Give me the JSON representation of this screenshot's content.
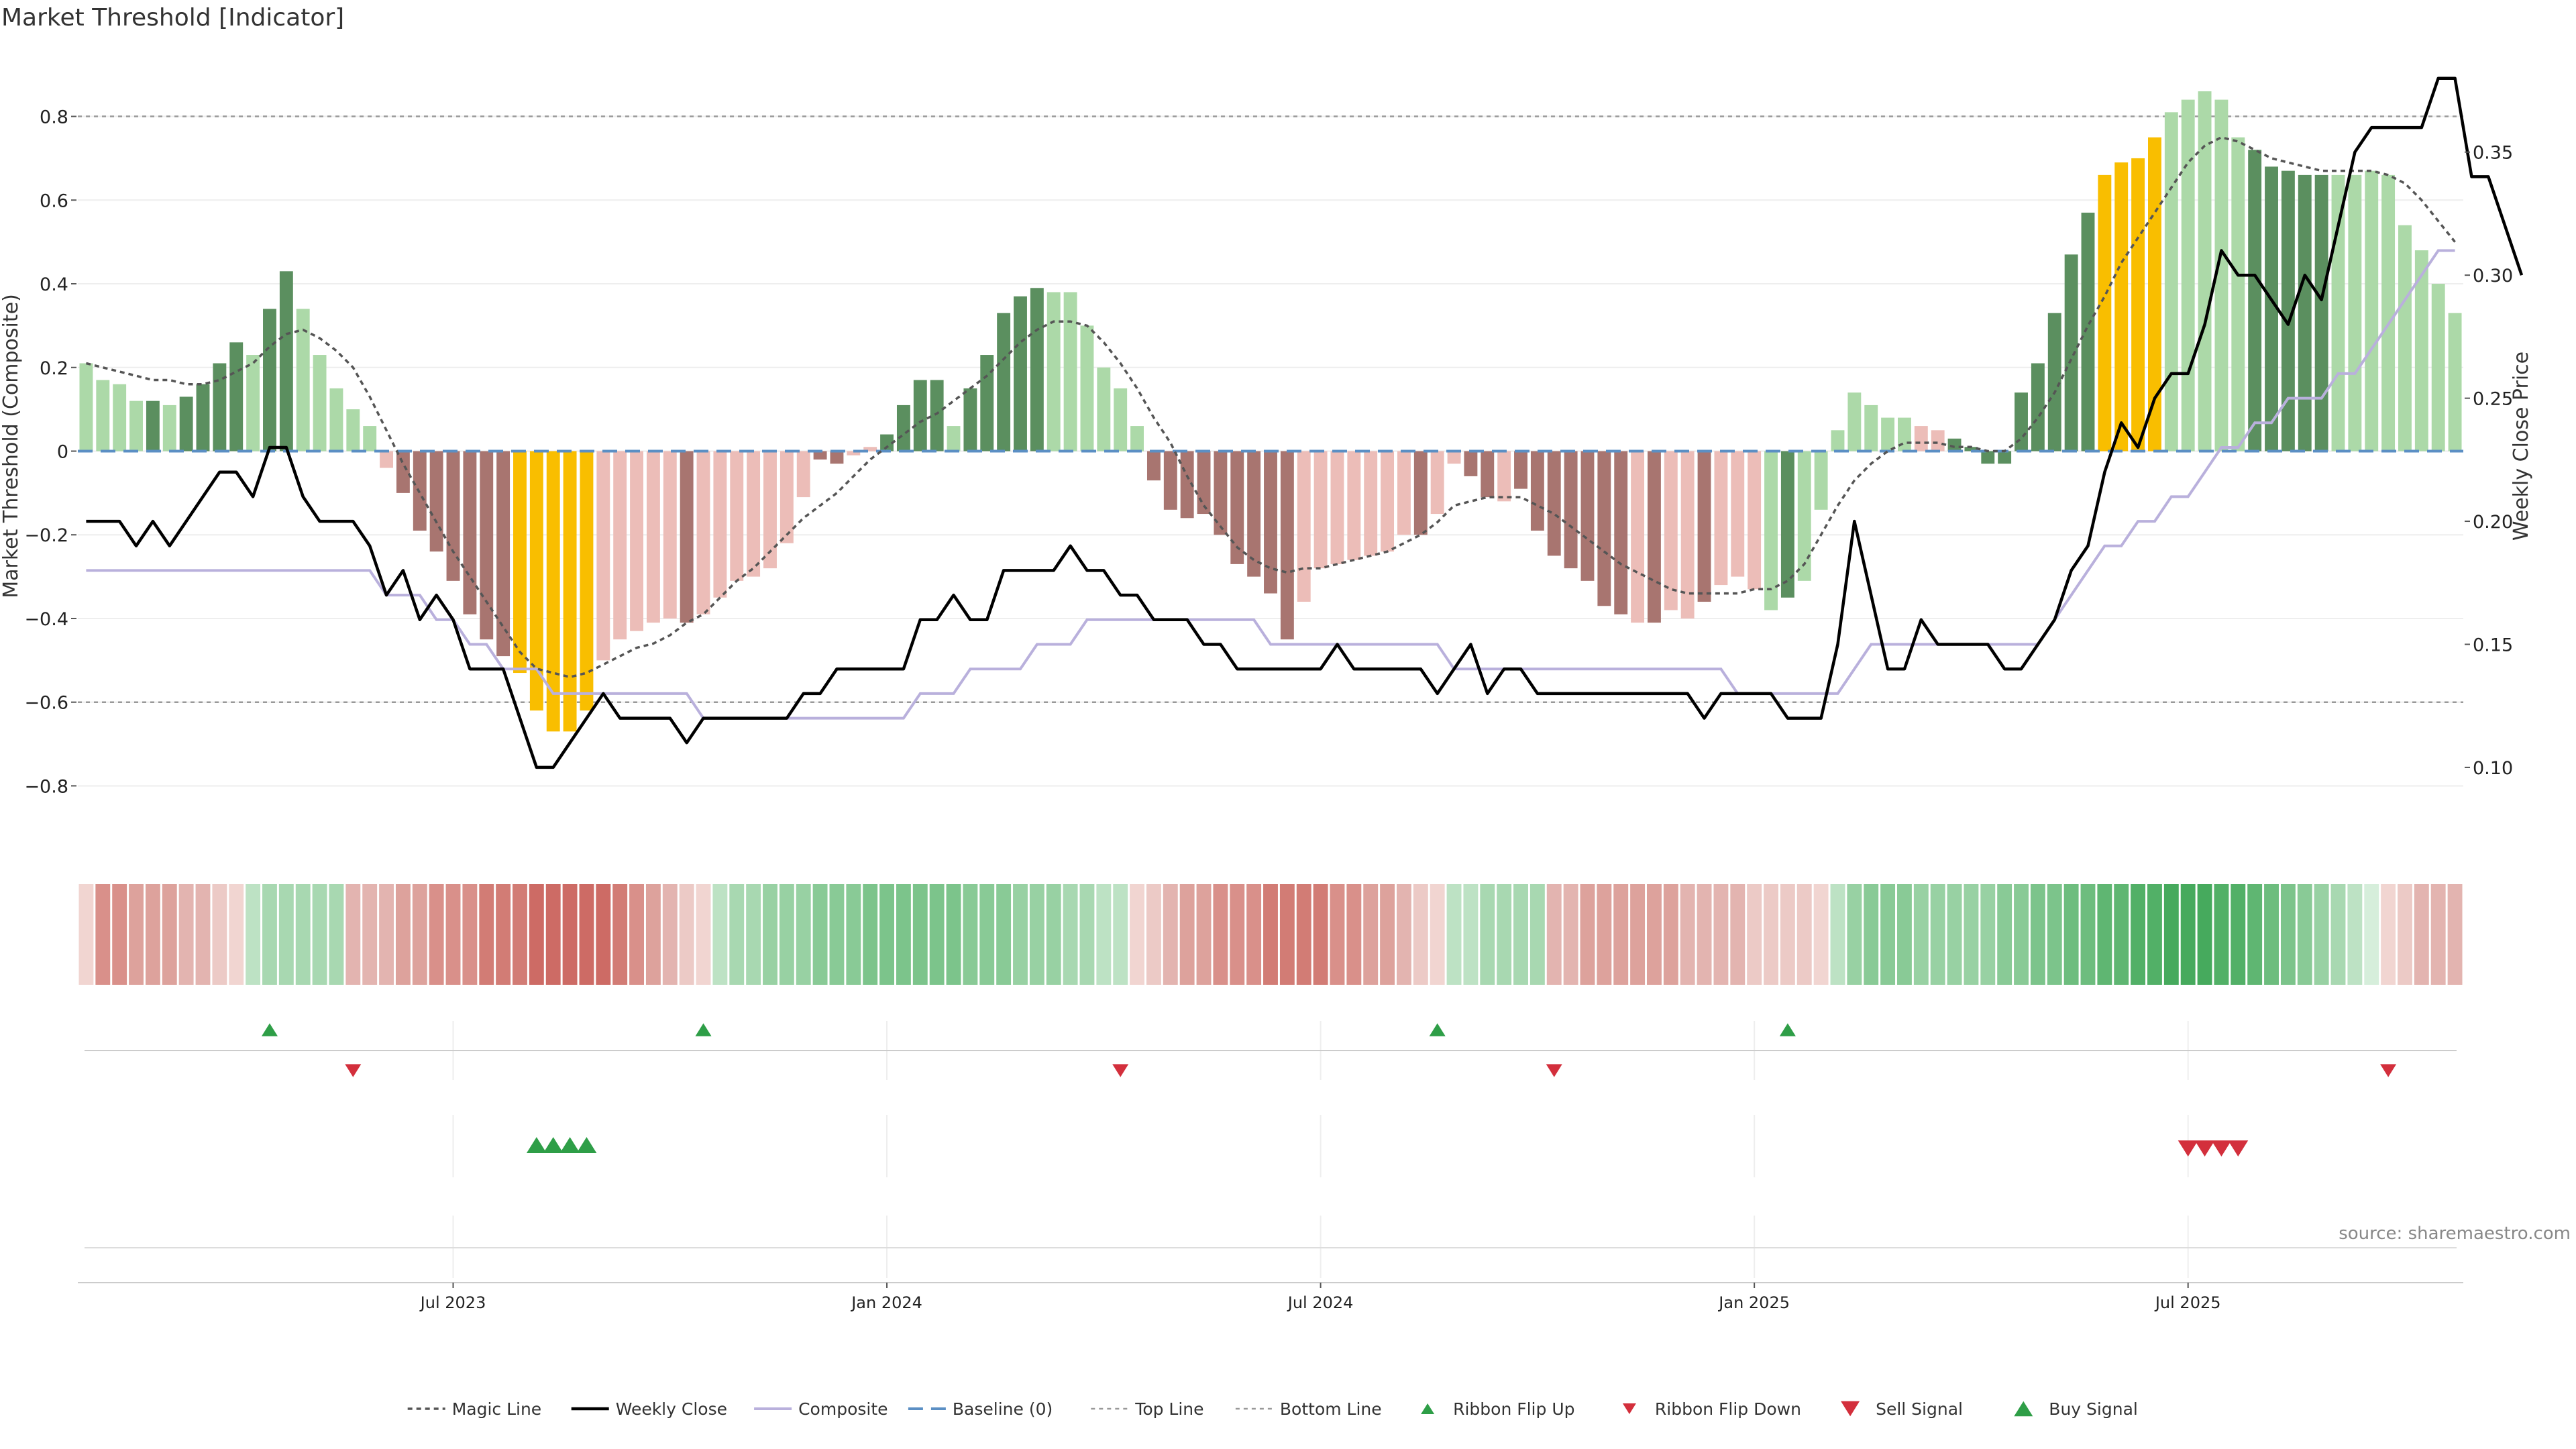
{
  "page": {
    "title": "Market Threshold [Indicator]"
  },
  "chart_data": {
    "type": "bar",
    "title": "Market Threshold [Indicator]",
    "ylabel": "Market Threshold (Composite)",
    "y2label": "Weekly Close Price",
    "ylim": [
      -0.95,
      0.95
    ],
    "y2lim": [
      0.067,
      0.39
    ],
    "yticks": [
      -0.8,
      -0.6,
      -0.4,
      -0.2,
      0,
      0.2,
      0.4,
      0.6,
      0.8
    ],
    "yticklabels": [
      "−0.8",
      "−0.6",
      "−0.4",
      "−0.2",
      "0",
      "0.2",
      "0.4",
      "0.6",
      "0.8"
    ],
    "y2ticks": [
      0.1,
      0.15,
      0.2,
      0.25,
      0.3,
      0.35
    ],
    "y2ticklabels": [
      "0.10",
      "0.15",
      "0.20",
      "0.25",
      "0.30",
      "0.35"
    ],
    "top_line": 0.8,
    "bottom_line": -0.6,
    "x_ticks": [
      {
        "label": "Jul 2023",
        "week": 22
      },
      {
        "label": "Jan 2024",
        "week": 48
      },
      {
        "label": "Jul 2024",
        "week": 74
      },
      {
        "label": "Jan 2025",
        "week": 100
      },
      {
        "label": "Jul 2025",
        "week": 126
      }
    ],
    "composite": [
      0.21,
      0.17,
      0.16,
      0.12,
      0.12,
      0.11,
      0.13,
      0.16,
      0.21,
      0.26,
      0.23,
      0.34,
      0.43,
      0.34,
      0.23,
      0.15,
      0.1,
      0.06,
      -0.04,
      -0.1,
      -0.19,
      -0.24,
      -0.31,
      -0.39,
      -0.45,
      -0.49,
      -0.53,
      -0.62,
      -0.67,
      -0.67,
      -0.62,
      -0.5,
      -0.45,
      -0.43,
      -0.41,
      -0.4,
      -0.41,
      -0.39,
      -0.35,
      -0.31,
      -0.3,
      -0.28,
      -0.22,
      -0.11,
      -0.02,
      -0.03,
      -0.01,
      0.01,
      0.04,
      0.11,
      0.17,
      0.17,
      0.06,
      0.15,
      0.23,
      0.33,
      0.37,
      0.39,
      0.38,
      0.38,
      0.3,
      0.2,
      0.15,
      0.06,
      -0.07,
      -0.14,
      -0.16,
      -0.15,
      -0.2,
      -0.27,
      -0.3,
      -0.34,
      -0.45,
      -0.36,
      -0.28,
      -0.27,
      -0.26,
      -0.25,
      -0.24,
      -0.2,
      -0.2,
      -0.15,
      -0.03,
      -0.06,
      -0.11,
      -0.12,
      -0.09,
      -0.19,
      -0.25,
      -0.28,
      -0.31,
      -0.37,
      -0.39,
      -0.41,
      -0.41,
      -0.38,
      -0.4,
      -0.36,
      -0.32,
      -0.3,
      -0.33,
      -0.38,
      -0.35,
      -0.31,
      -0.14,
      0.05,
      0.14,
      0.11,
      0.08,
      0.08,
      0.06,
      0.05,
      0.03,
      0.01,
      -0.03,
      -0.03,
      0.14,
      0.21,
      0.33,
      0.47,
      0.57,
      0.66,
      0.69,
      0.7,
      0.75,
      0.81,
      0.84,
      0.86,
      0.84,
      0.75,
      0.72,
      0.68,
      0.67,
      0.66,
      0.66,
      0.66,
      0.66,
      0.67,
      0.66,
      0.54,
      0.48,
      0.4,
      0.33
    ],
    "magic_line": [
      0.21,
      0.2,
      0.19,
      0.18,
      0.17,
      0.17,
      0.16,
      0.16,
      0.17,
      0.19,
      0.21,
      0.25,
      0.28,
      0.29,
      0.27,
      0.24,
      0.2,
      0.13,
      0.05,
      -0.03,
      -0.1,
      -0.17,
      -0.24,
      -0.3,
      -0.36,
      -0.42,
      -0.48,
      -0.52,
      -0.53,
      -0.54,
      -0.53,
      -0.51,
      -0.49,
      -0.47,
      -0.46,
      -0.44,
      -0.41,
      -0.39,
      -0.35,
      -0.31,
      -0.28,
      -0.24,
      -0.2,
      -0.16,
      -0.13,
      -0.1,
      -0.06,
      -0.02,
      0.01,
      0.04,
      0.07,
      0.09,
      0.12,
      0.15,
      0.18,
      0.22,
      0.26,
      0.29,
      0.31,
      0.31,
      0.3,
      0.26,
      0.21,
      0.15,
      0.08,
      0.02,
      -0.06,
      -0.13,
      -0.18,
      -0.23,
      -0.26,
      -0.28,
      -0.29,
      -0.28,
      -0.28,
      -0.27,
      -0.26,
      -0.25,
      -0.24,
      -0.22,
      -0.2,
      -0.17,
      -0.13,
      -0.12,
      -0.11,
      -0.11,
      -0.11,
      -0.13,
      -0.15,
      -0.18,
      -0.21,
      -0.24,
      -0.27,
      -0.29,
      -0.31,
      -0.33,
      -0.34,
      -0.34,
      -0.34,
      -0.34,
      -0.33,
      -0.33,
      -0.31,
      -0.27,
      -0.2,
      -0.13,
      -0.07,
      -0.03,
      0.0,
      0.02,
      0.02,
      0.02,
      0.01,
      0.01,
      0.0,
      0.0,
      0.03,
      0.08,
      0.14,
      0.22,
      0.3,
      0.37,
      0.45,
      0.51,
      0.57,
      0.63,
      0.69,
      0.73,
      0.75,
      0.74,
      0.72,
      0.7,
      0.69,
      0.68,
      0.67,
      0.67,
      0.67,
      0.67,
      0.66,
      0.64,
      0.6,
      0.55,
      0.5
    ],
    "weekly_close": [
      0.2,
      0.2,
      0.2,
      0.19,
      0.2,
      0.19,
      0.2,
      0.21,
      0.22,
      0.22,
      0.21,
      0.23,
      0.23,
      0.21,
      0.2,
      0.2,
      0.2,
      0.19,
      0.17,
      0.18,
      0.16,
      0.17,
      0.16,
      0.14,
      0.14,
      0.14,
      0.12,
      0.1,
      0.1,
      0.11,
      0.12,
      0.13,
      0.12,
      0.12,
      0.12,
      0.12,
      0.11,
      0.12,
      0.12,
      0.12,
      0.12,
      0.12,
      0.12,
      0.13,
      0.13,
      0.14,
      0.14,
      0.14,
      0.14,
      0.14,
      0.16,
      0.16,
      0.17,
      0.16,
      0.16,
      0.18,
      0.18,
      0.18,
      0.18,
      0.19,
      0.18,
      0.18,
      0.17,
      0.17,
      0.16,
      0.16,
      0.16,
      0.15,
      0.15,
      0.14,
      0.14,
      0.14,
      0.14,
      0.14,
      0.14,
      0.15,
      0.14,
      0.14,
      0.14,
      0.14,
      0.14,
      0.13,
      0.14,
      0.15,
      0.13,
      0.14,
      0.14,
      0.13,
      0.13,
      0.13,
      0.13,
      0.13,
      0.13,
      0.13,
      0.13,
      0.13,
      0.13,
      0.12,
      0.13,
      0.13,
      0.13,
      0.13,
      0.12,
      0.12,
      0.12,
      0.15,
      0.2,
      0.17,
      0.14,
      0.14,
      0.16,
      0.15,
      0.15,
      0.15,
      0.15,
      0.14,
      0.14,
      0.15,
      0.16,
      0.18,
      0.19,
      0.22,
      0.24,
      0.23,
      0.25,
      0.26,
      0.26,
      0.28,
      0.31,
      0.3,
      0.3,
      0.29,
      0.28,
      0.3,
      0.29,
      0.32,
      0.35,
      0.36,
      0.36,
      0.36,
      0.36,
      0.38,
      0.38,
      0.34,
      0.34,
      0.32,
      0.3
    ],
    "composite_line_close_scale": [
      0.18,
      0.18,
      0.18,
      0.18,
      0.18,
      0.18,
      0.18,
      0.18,
      0.18,
      0.18,
      0.18,
      0.18,
      0.18,
      0.18,
      0.18,
      0.18,
      0.18,
      0.18,
      0.17,
      0.17,
      0.17,
      0.16,
      0.16,
      0.15,
      0.15,
      0.14,
      0.14,
      0.14,
      0.13,
      0.13,
      0.13,
      0.13,
      0.13,
      0.13,
      0.13,
      0.13,
      0.13,
      0.12,
      0.12,
      0.12,
      0.12,
      0.12,
      0.12,
      0.12,
      0.12,
      0.12,
      0.12,
      0.12,
      0.12,
      0.12,
      0.13,
      0.13,
      0.13,
      0.14,
      0.14,
      0.14,
      0.14,
      0.15,
      0.15,
      0.15,
      0.16,
      0.16,
      0.16,
      0.16,
      0.16,
      0.16,
      0.16,
      0.16,
      0.16,
      0.16,
      0.16,
      0.15,
      0.15,
      0.15,
      0.15,
      0.15,
      0.15,
      0.15,
      0.15,
      0.15,
      0.15,
      0.15,
      0.14,
      0.14,
      0.14,
      0.14,
      0.14,
      0.14,
      0.14,
      0.14,
      0.14,
      0.14,
      0.14,
      0.14,
      0.14,
      0.14,
      0.14,
      0.14,
      0.14,
      0.13,
      0.13,
      0.13,
      0.13,
      0.13,
      0.13,
      0.13,
      0.14,
      0.15,
      0.15,
      0.15,
      0.15,
      0.15,
      0.15,
      0.15,
      0.15,
      0.15,
      0.15,
      0.15,
      0.16,
      0.17,
      0.18,
      0.19,
      0.19,
      0.2,
      0.2,
      0.21,
      0.21,
      0.22,
      0.23,
      0.23,
      0.24,
      0.24,
      0.25,
      0.25,
      0.25,
      0.26,
      0.26,
      0.27,
      0.28,
      0.29,
      0.3,
      0.31,
      0.31
    ],
    "bar_classes_note": "D=strong positive (dark green), L=positive (light green), R=strong negative (dark red), P=negative (light red), Y=extreme (amber)",
    "bar_classes": [
      "L",
      "L",
      "L",
      "L",
      "D",
      "L",
      "D",
      "D",
      "D",
      "D",
      "L",
      "D",
      "D",
      "L",
      "L",
      "L",
      "L",
      "L",
      "P",
      "R",
      "R",
      "R",
      "R",
      "R",
      "R",
      "R",
      "Y",
      "Y",
      "Y",
      "Y",
      "Y",
      "P",
      "P",
      "P",
      "P",
      "P",
      "R",
      "P",
      "P",
      "P",
      "P",
      "P",
      "P",
      "P",
      "R",
      "R",
      "P",
      "P",
      "D",
      "D",
      "D",
      "D",
      "L",
      "D",
      "D",
      "D",
      "D",
      "D",
      "L",
      "L",
      "L",
      "L",
      "L",
      "L",
      "R",
      "R",
      "R",
      "R",
      "R",
      "R",
      "R",
      "R",
      "R",
      "P",
      "P",
      "P",
      "P",
      "P",
      "P",
      "P",
      "R",
      "P",
      "P",
      "R",
      "R",
      "P",
      "R",
      "R",
      "R",
      "R",
      "R",
      "R",
      "R",
      "P",
      "R",
      "P",
      "P",
      "R",
      "P",
      "P",
      "P",
      "L",
      "D",
      "L",
      "L",
      "L",
      "L",
      "L",
      "L",
      "L",
      "P",
      "P",
      "D",
      "D",
      "D",
      "D",
      "D",
      "D",
      "D",
      "D",
      "D",
      "Y",
      "Y",
      "Y",
      "Y",
      "L",
      "L",
      "L",
      "L",
      "L",
      "D",
      "D",
      "D",
      "D",
      "D",
      "L",
      "L",
      "L",
      "L"
    ],
    "ribbon_colors": [
      "#f1d5d1",
      "#d9908a",
      "#d9908a",
      "#dda29c",
      "#dda29c",
      "#dda29c",
      "#e3b4b0",
      "#e3b4b0",
      "#eccac6",
      "#f1d5d1",
      "#bde2c4",
      "#a8d8b1",
      "#a8d8b1",
      "#a8d8b1",
      "#a8d8b1",
      "#a8d8b1",
      "#e3b4b0",
      "#e3b4b0",
      "#e3b4b0",
      "#dda29c",
      "#dda29c",
      "#d9908a",
      "#d9908a",
      "#d9908a",
      "#d27c75",
      "#d27c75",
      "#d27c75",
      "#cd6b65",
      "#cd6b65",
      "#cd6b65",
      "#cd6b65",
      "#cd6b65",
      "#d27c75",
      "#d9908a",
      "#dda29c",
      "#e3b4b0",
      "#eccac6",
      "#f1d5d1",
      "#bde2c4",
      "#a8d8b1",
      "#a8d8b1",
      "#98d1a3",
      "#98d1a3",
      "#98d1a3",
      "#89ca96",
      "#89ca96",
      "#89ca96",
      "#7cc48b",
      "#7cc48b",
      "#7cc48b",
      "#7cc48b",
      "#7cc48b",
      "#7cc48b",
      "#89ca96",
      "#89ca96",
      "#89ca96",
      "#98d1a3",
      "#98d1a3",
      "#98d1a3",
      "#a8d8b1",
      "#a8d8b1",
      "#bde2c4",
      "#bde2c4",
      "#f1d5d1",
      "#eccac6",
      "#e3b4b0",
      "#dda29c",
      "#dda29c",
      "#d9908a",
      "#d9908a",
      "#d9908a",
      "#d27c75",
      "#d27c75",
      "#d27c75",
      "#d27c75",
      "#d9908a",
      "#d9908a",
      "#dda29c",
      "#dda29c",
      "#e3b4b0",
      "#eccac6",
      "#f1d5d1",
      "#bde2c4",
      "#bde2c4",
      "#a8d8b1",
      "#a8d8b1",
      "#a8d8b1",
      "#a8d8b1",
      "#e3b4b0",
      "#e3b4b0",
      "#dda29c",
      "#dda29c",
      "#dda29c",
      "#dda29c",
      "#dda29c",
      "#dda29c",
      "#e3b4b0",
      "#e3b4b0",
      "#e3b4b0",
      "#e3b4b0",
      "#eccac6",
      "#eccac6",
      "#eccac6",
      "#eccac6",
      "#f1d5d1",
      "#bde2c4",
      "#98d1a3",
      "#89ca96",
      "#89ca96",
      "#89ca96",
      "#98d1a3",
      "#98d1a3",
      "#98d1a3",
      "#98d1a3",
      "#98d1a3",
      "#89ca96",
      "#89ca96",
      "#7cc48b",
      "#7cc48b",
      "#6dbd7e",
      "#6dbd7e",
      "#5fb672",
      "#5fb672",
      "#52b067",
      "#52b067",
      "#46aa5d",
      "#46aa5d",
      "#46aa5d",
      "#52b067",
      "#52b067",
      "#5fb672",
      "#6dbd7e",
      "#7cc48b",
      "#89ca96",
      "#98d1a3",
      "#a8d8b1",
      "#bde2c4",
      "#d6eedb",
      "#f1d5d1",
      "#eccac6",
      "#e3b4b0",
      "#e3b4b0",
      "#e3b4b0"
    ],
    "ribbon_flip_up_weeks": [
      11,
      37,
      81,
      102
    ],
    "ribbon_flip_down_weeks": [
      16,
      62,
      88,
      138
    ],
    "buy_signal_weeks": [
      27,
      28,
      29,
      30
    ],
    "sell_signal_weeks": [
      126,
      127,
      128,
      129
    ],
    "legend": [
      "Magic Line",
      "Weekly Close",
      "Composite",
      "Baseline (0)",
      "Top Line",
      "Bottom Line",
      "Ribbon Flip Up",
      "Ribbon Flip Down",
      "Sell Signal",
      "Buy Signal"
    ],
    "source": "source: sharemaestro.com",
    "colors": {
      "bar_dark_green": "#5b8f5f",
      "bar_light_green": "#acd9a8",
      "bar_dark_red": "#a87570",
      "bar_light_red": "#ecbdb8",
      "bar_amber": "#f9be00",
      "weekly_close": "#000000",
      "composite_line": "#b9b0dc",
      "magic_line": "#555555",
      "baseline": "#5b8fc4",
      "threshold_lines": "#999999",
      "signal_green": "#2e9e47",
      "signal_red": "#d32f3c",
      "grid": "#eeeeee"
    }
  }
}
